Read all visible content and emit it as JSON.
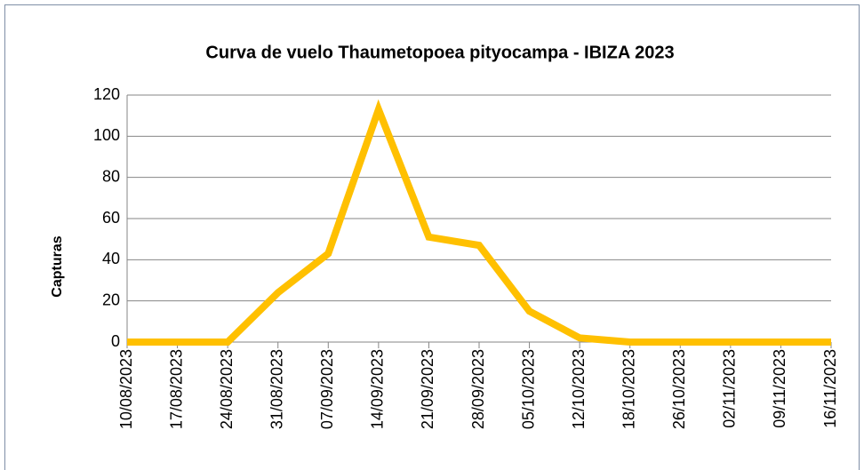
{
  "chart_data": {
    "type": "line",
    "title": "Curva de vuelo Thaumetopoea pityocampa - IBIZA 2023",
    "y_label": "Capturas",
    "categories": [
      "10/08/2023",
      "17/08/2023",
      "24/08/2023",
      "31/08/2023",
      "07/09/2023",
      "14/09/2023",
      "21/09/2023",
      "28/09/2023",
      "05/10/2023",
      "12/10/2023",
      "18/10/2023",
      "26/10/2023",
      "02/11/2023",
      "09/11/2023",
      "16/11/2023"
    ],
    "series": [
      {
        "name": "Capturas",
        "color": "#ffc000",
        "values": [
          0,
          0,
          0,
          24,
          43,
          113,
          51,
          47,
          15,
          2,
          0,
          0,
          0,
          0,
          0
        ]
      }
    ],
    "ylim": [
      0,
      120
    ],
    "yticks": [
      0,
      20,
      40,
      60,
      80,
      100,
      120
    ],
    "grid": true
  }
}
